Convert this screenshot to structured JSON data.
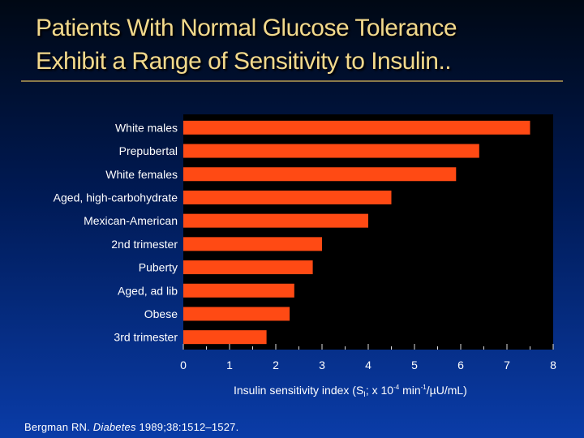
{
  "title_line1": "Patients With Normal Glucose Tolerance",
  "title_line2": "Exhibit a Range of Sensitivity to Insulin..",
  "citation": {
    "author": "Bergman RN. ",
    "journal": "Diabetes",
    "ref": " 1989;38:1512–1527."
  },
  "colors": {
    "bar": "#ff4a14",
    "title": "#f2d98c",
    "plot_bg": "#000000"
  },
  "chart_data": {
    "type": "bar",
    "orientation": "horizontal",
    "title": "",
    "categories": [
      "White males",
      "Prepubertal",
      "White females",
      "Aged, high-carbohydrate",
      "Mexican-American",
      "2nd trimester",
      "Puberty",
      "Aged, ad lib",
      "Obese",
      "3rd trimester"
    ],
    "values": [
      7.5,
      6.4,
      5.9,
      4.5,
      4.0,
      3.0,
      2.8,
      2.4,
      2.3,
      1.8
    ],
    "xlabel_pre": "Insulin sensitivity index (S",
    "xlabel_sub": "I",
    "xlabel_mid": "; x  10",
    "xlabel_sup1": "-4",
    "xlabel_mid2": " min",
    "xlabel_sup2": "-1",
    "xlabel_post": "/µU/mL)",
    "xlim": [
      0,
      8
    ],
    "ticks": [
      "0",
      "1",
      "2",
      "3",
      "4",
      "5",
      "6",
      "7",
      "8"
    ],
    "grid": false
  }
}
